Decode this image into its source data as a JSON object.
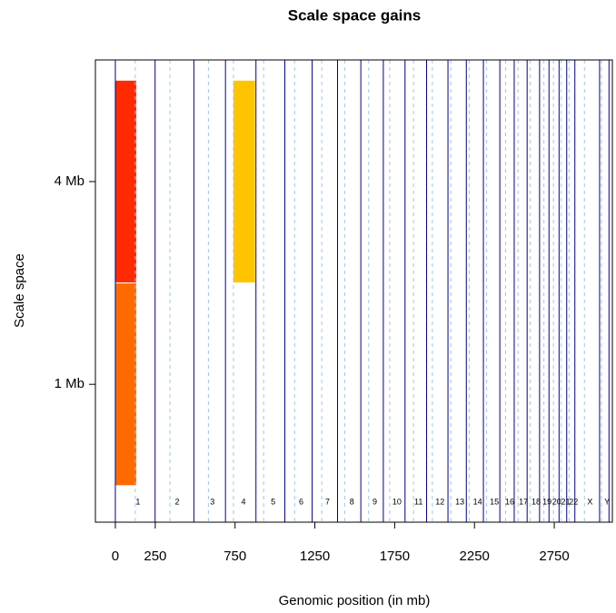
{
  "chart_data": {
    "type": "segments",
    "title": "Scale space gains",
    "x_label": "Genomic position (in mb)",
    "y_label": "Scale space",
    "xlim": [
      -125,
      3114
    ],
    "ylim": [
      0.32,
      2.6
    ],
    "xticks": [
      0,
      250,
      750,
      1250,
      1750,
      2250,
      2750
    ],
    "yticks": [
      {
        "value": 1,
        "label": "1 Mb"
      },
      {
        "value": 2,
        "label": "4 Mb"
      }
    ],
    "chromosomes": [
      "1",
      "2",
      "3",
      "4",
      "5",
      "6",
      "7",
      "8",
      "9",
      "10",
      "11",
      "12",
      "13",
      "14",
      "15",
      "16",
      "17",
      "18",
      "19",
      "20",
      "21",
      "22",
      "X",
      "Y"
    ],
    "chrom_bounds": [
      0,
      249,
      492,
      690,
      881,
      1062,
      1233,
      1392,
      1538,
      1679,
      1815,
      1950,
      2084,
      2199,
      2306,
      2409,
      2499,
      2580,
      2658,
      2717,
      2780,
      2828,
      2879,
      3034,
      3093
    ],
    "centromeres": [
      125,
      342,
      583,
      740,
      929,
      1123,
      1293,
      1437,
      1587,
      1719,
      1868,
      1986,
      2102,
      2217,
      2325,
      2445,
      2523,
      2598,
      2685,
      2745,
      2793,
      2843,
      2939,
      3046
    ],
    "boundary_color": "#00008b",
    "centromere_color": "#9cc8e8",
    "segments": [
      {
        "start": 0,
        "end": 131,
        "level": 1,
        "color": "#ff6a00"
      },
      {
        "start": 0,
        "end": 131,
        "level": 2,
        "color": "#ff2a00"
      },
      {
        "start": 739,
        "end": 875,
        "level": 2,
        "color": "#ffc400"
      }
    ]
  }
}
